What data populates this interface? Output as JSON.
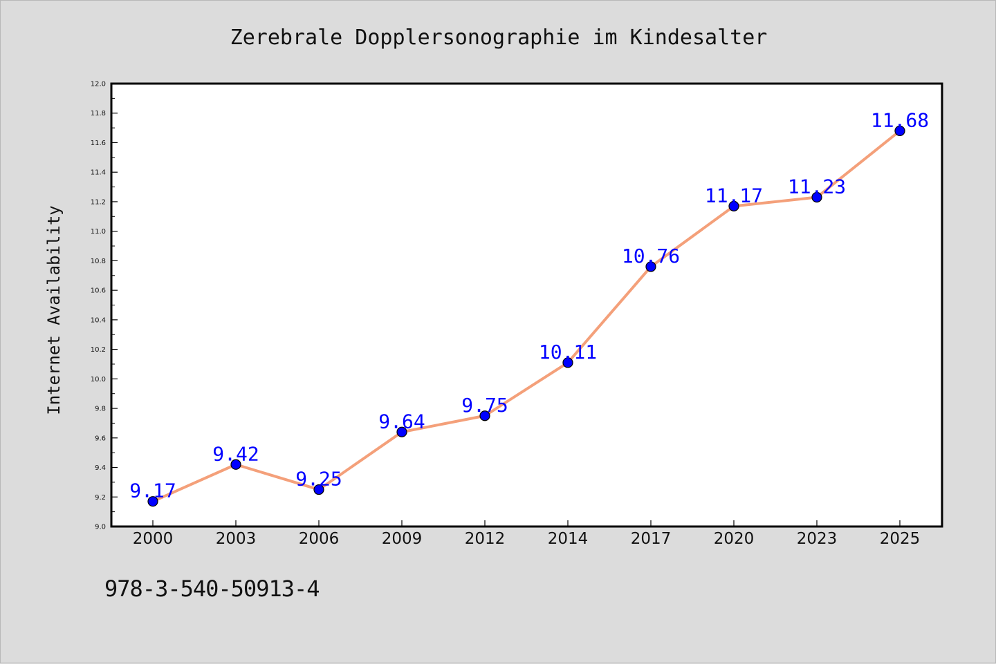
{
  "chart_data": {
    "type": "line",
    "title": "Zerebrale Dopplersonographie im Kindesalter",
    "xlabel": "",
    "ylabel": "Internet Availability",
    "categories": [
      "2000",
      "2003",
      "2006",
      "2009",
      "2012",
      "2014",
      "2017",
      "2020",
      "2023",
      "2025"
    ],
    "series": [
      {
        "values": [
          9.17,
          9.42,
          9.25,
          9.64,
          9.75,
          10.11,
          10.76,
          11.17,
          11.23,
          11.68
        ],
        "line_color": "#f4a07a",
        "marker_color": "#0000ff",
        "label_color": "#0000ff"
      }
    ],
    "data_labels": [
      "9.17",
      "9.42",
      "9.25",
      "9.64",
      "9.75",
      "10.11",
      "10.76",
      "11.17",
      "11.23",
      "11.68"
    ],
    "ylim": [
      9.0,
      12.0
    ],
    "y_major_step": 0.2,
    "y_tick_labels": [
      "9.0",
      "9.2",
      "9.4",
      "9.6",
      "9.8",
      "10.0",
      "10.2",
      "10.4",
      "10.6",
      "10.8",
      "11.0",
      "11.2",
      "11.4",
      "11.6",
      "11.8",
      "12.0"
    ],
    "grid": false,
    "legend": "none"
  },
  "footer": {
    "isbn": "978-3-540-50913-4"
  }
}
